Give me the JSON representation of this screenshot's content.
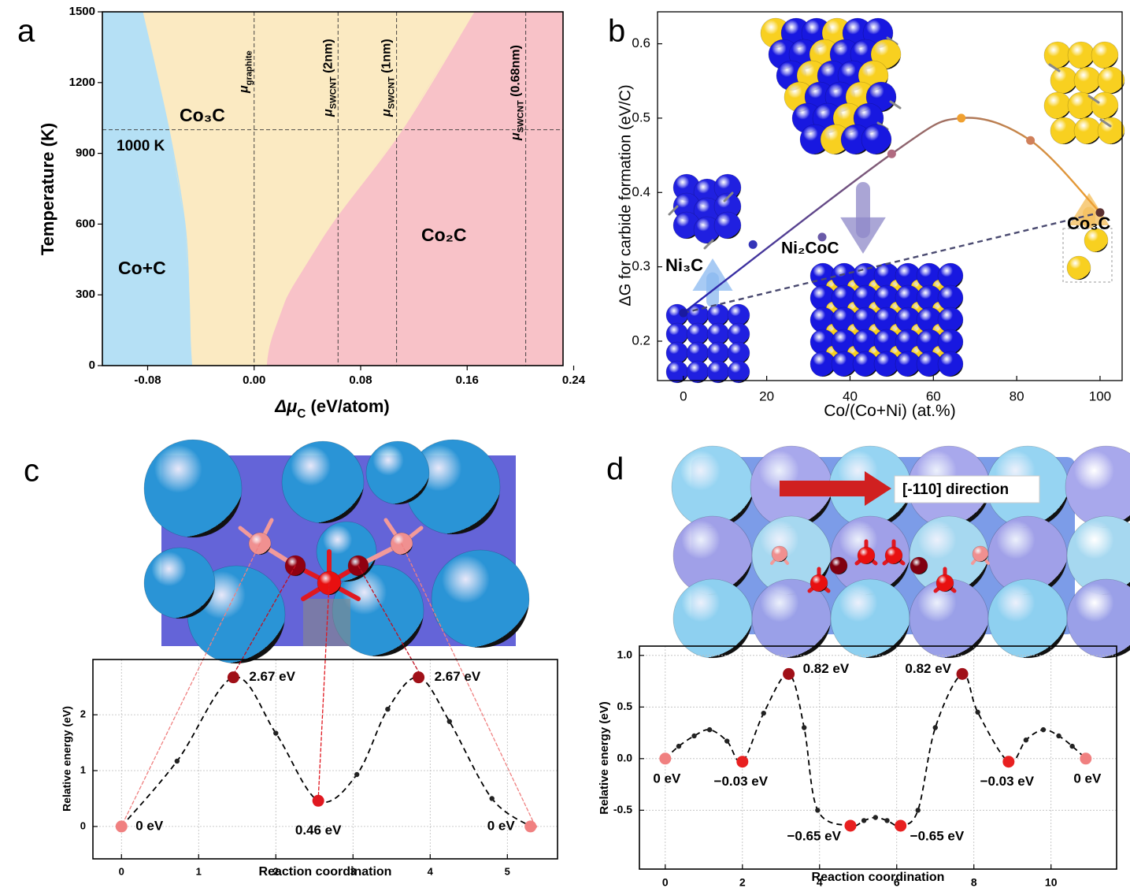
{
  "chart_data": [
    {
      "type": "area",
      "panel_label": "a",
      "x_label": {
        "text": "Δμ",
        "sub": "C",
        "tail": " (eV/atom)"
      },
      "y_label": "Temperature (K)",
      "xlim": [
        -0.114,
        0.232
      ],
      "xticks": [
        -0.08,
        {
          "value": 0,
          "label": "0.00"
        },
        0.08,
        0.16,
        0.24
      ],
      "ylim": [
        0,
        1500
      ],
      "yticks": [
        0,
        300,
        600,
        900,
        1200,
        1500
      ],
      "regions": [
        {
          "label": "Co+C",
          "color": "#b5e0f5",
          "text_color": "#1d6fa0"
        },
        {
          "label": "Co₃C",
          "color": "#fbeac2",
          "text_color": "#ea964a"
        },
        {
          "label": "Co₂C",
          "color": "#f8c2c8",
          "text_color": "#e0202a"
        }
      ],
      "boundaries": [
        {
          "x": [
            -0.047,
            -0.048,
            -0.049,
            -0.052,
            -0.064,
            -0.084
          ],
          "values": [
            0,
            100,
            300,
            600,
            1000,
            1500
          ]
        },
        {
          "x": [
            0.009,
            0.012,
            0.025,
            0.058,
            0.111,
            0.165
          ],
          "values": [
            0,
            100,
            300,
            600,
            1000,
            1500
          ]
        }
      ],
      "vlines": [
        {
          "x": 0,
          "label": {
            "text": "μ",
            "sub": "graphite"
          }
        },
        {
          "x": 0.063,
          "label": {
            "text": "μ",
            "sub": "SWCNT",
            "tail": " (2nm)"
          }
        },
        {
          "x": 0.107,
          "label": {
            "text": "μ",
            "sub": "SWCNT",
            "tail": " (1nm)"
          }
        },
        {
          "x": 0.204,
          "label": {
            "text": "μ",
            "sub": "SWCNT",
            "tail": " (0.68nm)"
          }
        }
      ],
      "hline": {
        "value": 1000,
        "label": "1000 K"
      }
    },
    {
      "type": "line",
      "panel_label": "b",
      "x_label": {
        "text": "Co/(Co+Ni) (at.%)"
      },
      "y_label": "ΔG for carbide formation (eV/C)",
      "xlim": [
        -6.2,
        105.3
      ],
      "xticks": [
        0,
        20,
        40,
        60,
        80,
        100
      ],
      "ylim": [
        0.147,
        0.643
      ],
      "yticks": [
        0.2,
        0.3,
        0.4,
        0.5,
        0.6
      ],
      "grid": false,
      "series": [
        {
          "x": [
            0,
            50,
            66.7,
            83.3,
            100
          ],
          "values": [
            0.238,
            0.452,
            0.5,
            0.47,
            0.373
          ],
          "line": "solid",
          "smooth": true,
          "colors": [
            "#1f1fb4",
            "#f0a030"
          ],
          "point_colors": [
            "#1a1aa0",
            "#b06a80",
            "#f0a030",
            "#d0805a",
            "#5a3030"
          ]
        },
        {
          "x": [
            0,
            100
          ],
          "values": [
            0.238,
            0.373
          ],
          "line": "dashed",
          "color": "#4a4a70"
        },
        {
          "x": [
            16.7,
            33.3
          ],
          "values": [
            0.33,
            0.34
          ],
          "line": "none",
          "point_colors": [
            "#3434b8",
            "#6a5aa8"
          ]
        }
      ],
      "annotations": [
        {
          "text": "Ni₃C",
          "color": "#1a2080"
        },
        {
          "text": "Ni₂CoC",
          "color": "#6a5ab0"
        },
        {
          "text": "Co₃C",
          "color": "#7a4a2a"
        }
      ]
    },
    {
      "type": "line",
      "panel_label": "c",
      "x_label": {
        "text": "Reaction coordination"
      },
      "y_label": "Relative energy (eV)",
      "xlim": [
        -0.37,
        5.65
      ],
      "xticks": [
        0,
        1,
        2,
        3,
        4,
        5
      ],
      "ylim": [
        -0.58,
        2.99
      ],
      "yticks": [
        0,
        1,
        2
      ],
      "grid": true,
      "series": [
        {
          "x": [
            0,
            0.72,
            1.45,
            2.0,
            2.55,
            3.05,
            3.45,
            3.85,
            4.25,
            4.8,
            5.3
          ],
          "values": [
            0,
            1.17,
            2.67,
            1.67,
            0.46,
            0.93,
            2.1,
            2.67,
            1.88,
            0.5,
            0
          ],
          "value_labels": [
            "0 eV",
            null,
            "2.67 eV",
            null,
            "0.46 eV",
            null,
            null,
            "2.67 eV",
            null,
            null,
            "0 eV"
          ],
          "point_colors": [
            "#f08080",
            "#222222",
            "#a01018",
            "#222222",
            "#e01820",
            "#222222",
            "#222222",
            "#a01018",
            "#222222",
            "#222222",
            "#f08080"
          ],
          "line": "dashed",
          "smooth": true,
          "color": "#000000"
        }
      ]
    },
    {
      "type": "line",
      "panel_label": "d",
      "x_label": {
        "text": "Reaction coordination"
      },
      "y_label": "Relative energy (eV)",
      "xlim": [
        -0.67,
        11.7
      ],
      "xticks": [
        0,
        2,
        4,
        6,
        8,
        10
      ],
      "ylim": [
        -1.07,
        1.09
      ],
      "yticks": [
        -0.5,
        {
          "value": 0,
          "label": "0.0"
        },
        0.5,
        {
          "value": 1,
          "label": "1.0"
        }
      ],
      "grid": true,
      "series": [
        {
          "x": [
            0,
            0.35,
            0.75,
            1.15,
            1.6,
            2.0,
            2.55,
            3.2,
            3.6,
            3.95,
            4.8,
            5.15,
            5.45,
            5.75,
            6.1,
            6.55,
            7.0,
            7.7,
            8.1,
            8.9,
            9.35,
            9.8,
            10.2,
            10.55,
            10.9
          ],
          "values": [
            0,
            0.12,
            0.22,
            0.28,
            0.17,
            -0.03,
            0.44,
            0.82,
            0.3,
            -0.5,
            -0.65,
            -0.6,
            -0.57,
            -0.6,
            -0.65,
            -0.5,
            0.3,
            0.82,
            0.45,
            -0.03,
            0.18,
            0.28,
            0.22,
            0.12,
            0
          ],
          "value_labels": [
            "0 eV",
            null,
            null,
            null,
            null,
            "−0.03 eV",
            null,
            "0.82 eV",
            null,
            null,
            "−0.65 eV",
            null,
            null,
            null,
            "−0.65 eV",
            null,
            null,
            "0.82 eV",
            null,
            "−0.03 eV",
            null,
            null,
            null,
            null,
            "0 eV"
          ],
          "point_colors": [
            "#f08080",
            "#222222",
            "#222222",
            "#222222",
            "#222222",
            "#e82020",
            "#222222",
            "#a01018",
            "#222222",
            "#222222",
            "#e82020",
            "#222222",
            "#222222",
            "#222222",
            "#e82020",
            "#222222",
            "#222222",
            "#a01018",
            "#222222",
            "#e82020",
            "#222222",
            "#222222",
            "#222222",
            "#222222",
            "#f08080"
          ],
          "line": "dashed",
          "smooth": true,
          "color": "#000000"
        }
      ],
      "annotations": [
        {
          "text": "[-110] direction",
          "color": "#e02020"
        }
      ]
    }
  ]
}
